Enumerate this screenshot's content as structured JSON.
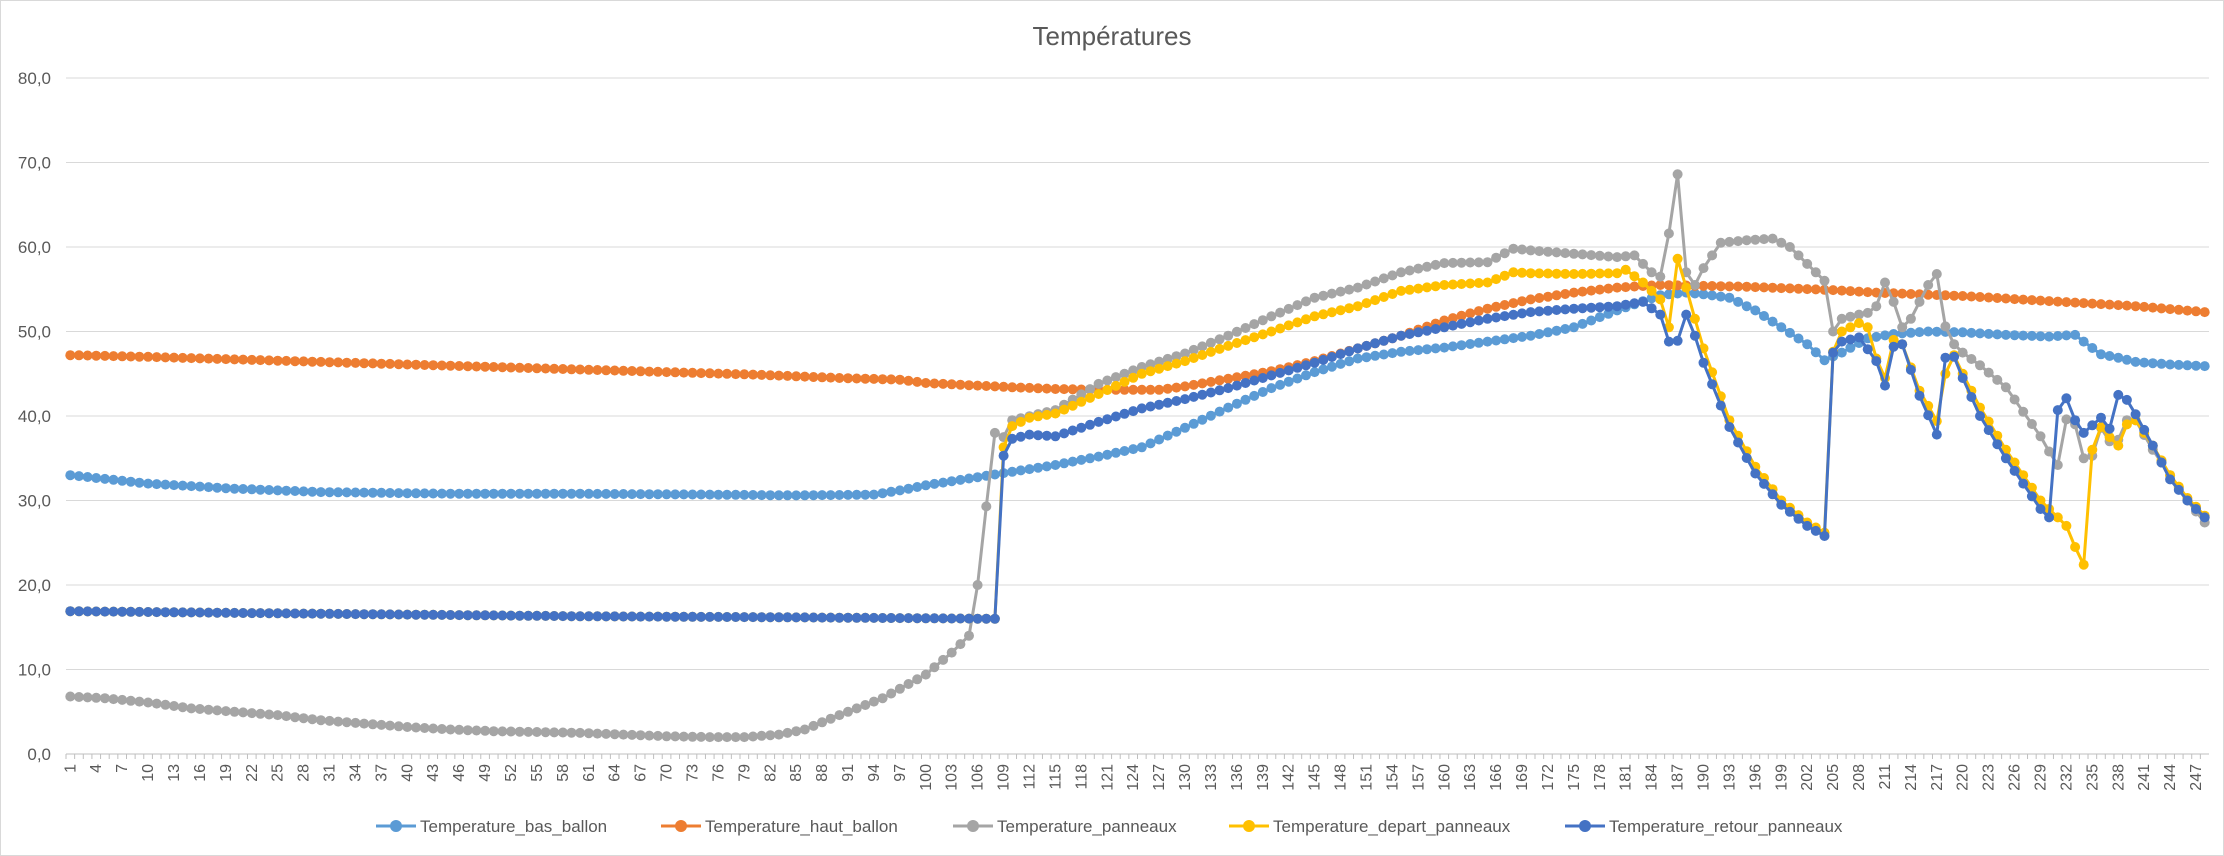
{
  "chart_data": {
    "type": "line",
    "title": "Températures",
    "xlabel": "",
    "ylabel": "",
    "ylim": [
      0,
      80
    ],
    "y_ticks": [
      "0,0",
      "10,0",
      "20,0",
      "30,0",
      "40,0",
      "50,0",
      "60,0",
      "70,0",
      "80,0"
    ],
    "x_range": [
      1,
      248
    ],
    "x_tick_step": 3,
    "grid": "horizontal",
    "legend_position": "bottom",
    "series": [
      {
        "name": "Temperature_bas_ballon",
        "color": "#5B9BD5",
        "keypoints": [
          [
            1,
            33
          ],
          [
            10,
            32
          ],
          [
            20,
            31.4
          ],
          [
            30,
            31
          ],
          [
            45,
            30.8
          ],
          [
            60,
            30.8
          ],
          [
            75,
            30.7
          ],
          [
            85,
            30.6
          ],
          [
            94,
            30.7
          ],
          [
            97,
            31.2
          ],
          [
            100,
            31.8
          ],
          [
            105,
            32.6
          ],
          [
            110,
            33.4
          ],
          [
            115,
            34.2
          ],
          [
            120,
            35.2
          ],
          [
            125,
            36.3
          ],
          [
            130,
            38.6
          ],
          [
            135,
            41
          ],
          [
            140,
            43.3
          ],
          [
            145,
            45.2
          ],
          [
            150,
            46.8
          ],
          [
            155,
            47.6
          ],
          [
            160,
            48.1
          ],
          [
            165,
            48.8
          ],
          [
            170,
            49.5
          ],
          [
            175,
            50.5
          ],
          [
            180,
            52.5
          ],
          [
            185,
            54.3
          ],
          [
            188,
            54.6
          ],
          [
            190,
            54.4
          ],
          [
            193,
            54
          ],
          [
            196,
            52.5
          ],
          [
            199,
            50.5
          ],
          [
            202,
            48.5
          ],
          [
            204,
            46.6
          ],
          [
            206,
            47.5
          ],
          [
            209,
            49.2
          ],
          [
            212,
            49.7
          ],
          [
            216,
            50
          ],
          [
            220,
            49.9
          ],
          [
            225,
            49.6
          ],
          [
            230,
            49.4
          ],
          [
            233,
            49.6
          ],
          [
            234,
            48.8
          ],
          [
            236,
            47.3
          ],
          [
            238,
            46.9
          ],
          [
            240,
            46.4
          ],
          [
            244,
            46.1
          ],
          [
            248,
            45.9
          ]
        ]
      },
      {
        "name": "Temperature_haut_ballon",
        "color": "#ED7D31",
        "keypoints": [
          [
            1,
            47.2
          ],
          [
            10,
            47
          ],
          [
            20,
            46.7
          ],
          [
            30,
            46.4
          ],
          [
            40,
            46.1
          ],
          [
            50,
            45.8
          ],
          [
            60,
            45.5
          ],
          [
            70,
            45.2
          ],
          [
            80,
            44.9
          ],
          [
            90,
            44.5
          ],
          [
            97,
            44.3
          ],
          [
            100,
            43.9
          ],
          [
            110,
            43.4
          ],
          [
            115,
            43.2
          ],
          [
            120,
            43.1
          ],
          [
            127,
            43.1
          ],
          [
            130,
            43.5
          ],
          [
            135,
            44.4
          ],
          [
            140,
            45.3
          ],
          [
            145,
            46.5
          ],
          [
            150,
            48
          ],
          [
            155,
            49.5
          ],
          [
            160,
            51.3
          ],
          [
            165,
            52.7
          ],
          [
            170,
            53.8
          ],
          [
            175,
            54.6
          ],
          [
            180,
            55.2
          ],
          [
            185,
            55.5
          ],
          [
            190,
            55.4
          ],
          [
            195,
            55.3
          ],
          [
            200,
            55.1
          ],
          [
            205,
            54.9
          ],
          [
            210,
            54.6
          ],
          [
            215,
            54.4
          ],
          [
            220,
            54.2
          ],
          [
            230,
            53.6
          ],
          [
            240,
            53
          ],
          [
            248,
            52.3
          ]
        ]
      },
      {
        "name": "Temperature_panneaux",
        "color": "#A5A5A5",
        "keypoints": [
          [
            1,
            6.8
          ],
          [
            5,
            6.6
          ],
          [
            10,
            6.1
          ],
          [
            15,
            5.4
          ],
          [
            20,
            5
          ],
          [
            25,
            4.6
          ],
          [
            30,
            4
          ],
          [
            35,
            3.6
          ],
          [
            40,
            3.2
          ],
          [
            45,
            2.9
          ],
          [
            50,
            2.7
          ],
          [
            55,
            2.6
          ],
          [
            60,
            2.5
          ],
          [
            65,
            2.3
          ],
          [
            70,
            2.1
          ],
          [
            75,
            2
          ],
          [
            79,
            2
          ],
          [
            83,
            2.3
          ],
          [
            86,
            2.9
          ],
          [
            90,
            4.6
          ],
          [
            95,
            6.6
          ],
          [
            100,
            9.4
          ],
          [
            103,
            12
          ],
          [
            105,
            14
          ],
          [
            106,
            20
          ],
          [
            107,
            29.3
          ],
          [
            108,
            38
          ],
          [
            109,
            37.5
          ],
          [
            110,
            39.5
          ],
          [
            115,
            40.7
          ],
          [
            120,
            43.8
          ],
          [
            125,
            45.8
          ],
          [
            130,
            47.4
          ],
          [
            135,
            49.5
          ],
          [
            140,
            51.8
          ],
          [
            145,
            54
          ],
          [
            150,
            55.2
          ],
          [
            155,
            57
          ],
          [
            160,
            58.1
          ],
          [
            165,
            58.2
          ],
          [
            168,
            59.8
          ],
          [
            170,
            59.6
          ],
          [
            175,
            59.2
          ],
          [
            180,
            58.8
          ],
          [
            182,
            59
          ],
          [
            184,
            57
          ],
          [
            185,
            56.5
          ],
          [
            186,
            61.6
          ],
          [
            187,
            68.6
          ],
          [
            188,
            57
          ],
          [
            189,
            55.5
          ],
          [
            190,
            57.5
          ],
          [
            192,
            60.5
          ],
          [
            195,
            60.8
          ],
          [
            198,
            61
          ],
          [
            200,
            60
          ],
          [
            202,
            58
          ],
          [
            204,
            56
          ],
          [
            205,
            50
          ],
          [
            206,
            51.5
          ],
          [
            208,
            52
          ],
          [
            209,
            52.2
          ],
          [
            210,
            53
          ],
          [
            211,
            55.8
          ],
          [
            212,
            53.5
          ],
          [
            213,
            50.5
          ],
          [
            214,
            51.5
          ],
          [
            216,
            55.5
          ],
          [
            217,
            56.8
          ],
          [
            218,
            50.6
          ],
          [
            219,
            48.5
          ],
          [
            220,
            47.5
          ],
          [
            222,
            46
          ],
          [
            225,
            43.4
          ],
          [
            227,
            40.5
          ],
          [
            229,
            37.6
          ],
          [
            230,
            35.8
          ],
          [
            231,
            34.2
          ],
          [
            232,
            39.6
          ],
          [
            233,
            39
          ],
          [
            234,
            35
          ],
          [
            235,
            35.3
          ],
          [
            236,
            38.6
          ],
          [
            237,
            37
          ],
          [
            238,
            37.2
          ],
          [
            239,
            39.5
          ],
          [
            240,
            39.5
          ],
          [
            242,
            36
          ],
          [
            244,
            33
          ],
          [
            246,
            30
          ],
          [
            248,
            27.4
          ]
        ]
      },
      {
        "name": "Temperature_depart_panneaux",
        "color": "#FFC000",
        "keypoints": [
          [
            1,
            16.9
          ],
          [
            20,
            16.7
          ],
          [
            40,
            16.5
          ],
          [
            60,
            16.3
          ],
          [
            80,
            16.2
          ],
          [
            95,
            16.1
          ],
          [
            108,
            16
          ],
          [
            109,
            36.3
          ],
          [
            110,
            38.8
          ],
          [
            112,
            39.8
          ],
          [
            115,
            40.3
          ],
          [
            120,
            42.6
          ],
          [
            125,
            45
          ],
          [
            130,
            46.5
          ],
          [
            135,
            48.3
          ],
          [
            140,
            50
          ],
          [
            145,
            51.8
          ],
          [
            150,
            53
          ],
          [
            155,
            54.8
          ],
          [
            160,
            55.5
          ],
          [
            165,
            55.8
          ],
          [
            168,
            57
          ],
          [
            170,
            56.9
          ],
          [
            175,
            56.8
          ],
          [
            180,
            56.9
          ],
          [
            181,
            57.3
          ],
          [
            183,
            55.8
          ],
          [
            185,
            53.8
          ],
          [
            186,
            50.5
          ],
          [
            187,
            58.6
          ],
          [
            188,
            55.2
          ],
          [
            189,
            51.5
          ],
          [
            190,
            48
          ],
          [
            193,
            39.5
          ],
          [
            196,
            34
          ],
          [
            199,
            30
          ],
          [
            202,
            27.4
          ],
          [
            204,
            26.2
          ],
          [
            205,
            47.6
          ],
          [
            206,
            50
          ],
          [
            208,
            51
          ],
          [
            209,
            50.5
          ],
          [
            210,
            46.8
          ],
          [
            211,
            44.5
          ],
          [
            212,
            49
          ],
          [
            213,
            48.5
          ],
          [
            215,
            43
          ],
          [
            217,
            39.4
          ],
          [
            218,
            45
          ],
          [
            219,
            47.2
          ],
          [
            220,
            45
          ],
          [
            222,
            41
          ],
          [
            225,
            36
          ],
          [
            229,
            30
          ],
          [
            230,
            29
          ],
          [
            231,
            28
          ],
          [
            232,
            27
          ],
          [
            233,
            24.5
          ],
          [
            234,
            22.4
          ],
          [
            235,
            36
          ],
          [
            236,
            38.7
          ],
          [
            237,
            37.5
          ],
          [
            238,
            36.5
          ],
          [
            239,
            39
          ],
          [
            240,
            39.5
          ],
          [
            242,
            36.5
          ],
          [
            244,
            33
          ],
          [
            246,
            30.3
          ],
          [
            248,
            28.2
          ]
        ]
      },
      {
        "name": "Temperature_retour_panneaux",
        "color": "#4472C4",
        "keypoints": [
          [
            1,
            16.9
          ],
          [
            20,
            16.7
          ],
          [
            40,
            16.5
          ],
          [
            60,
            16.3
          ],
          [
            80,
            16.2
          ],
          [
            95,
            16.1
          ],
          [
            108,
            16
          ],
          [
            109,
            35.3
          ],
          [
            110,
            37.3
          ],
          [
            112,
            37.8
          ],
          [
            115,
            37.6
          ],
          [
            120,
            39.3
          ],
          [
            125,
            40.9
          ],
          [
            130,
            42
          ],
          [
            135,
            43.3
          ],
          [
            140,
            44.8
          ],
          [
            145,
            46.3
          ],
          [
            150,
            48
          ],
          [
            155,
            49.5
          ],
          [
            160,
            50.5
          ],
          [
            165,
            51.5
          ],
          [
            170,
            52.3
          ],
          [
            175,
            52.7
          ],
          [
            180,
            53
          ],
          [
            183,
            53.5
          ],
          [
            185,
            52
          ],
          [
            186,
            48.8
          ],
          [
            187,
            48.9
          ],
          [
            188,
            52
          ],
          [
            189,
            49.5
          ],
          [
            190,
            46.3
          ],
          [
            193,
            38.7
          ],
          [
            196,
            33.2
          ],
          [
            199,
            29.5
          ],
          [
            202,
            27
          ],
          [
            204,
            25.8
          ],
          [
            205,
            47.5
          ],
          [
            206,
            48.8
          ],
          [
            208,
            49.3
          ],
          [
            210,
            46.5
          ],
          [
            211,
            43.6
          ],
          [
            212,
            48.2
          ],
          [
            213,
            48.5
          ],
          [
            215,
            42.4
          ],
          [
            217,
            37.8
          ],
          [
            218,
            46.9
          ],
          [
            219,
            47
          ],
          [
            220,
            44.5
          ],
          [
            222,
            40
          ],
          [
            225,
            35
          ],
          [
            229,
            29
          ],
          [
            230,
            28
          ],
          [
            231,
            40.7
          ],
          [
            232,
            42.1
          ],
          [
            233,
            39.5
          ],
          [
            234,
            38
          ],
          [
            236,
            39.8
          ],
          [
            237,
            38.5
          ],
          [
            238,
            42.5
          ],
          [
            239,
            41.9
          ],
          [
            240,
            40.2
          ],
          [
            242,
            36.5
          ],
          [
            244,
            32.5
          ],
          [
            246,
            30
          ],
          [
            248,
            28
          ]
        ]
      }
    ]
  }
}
